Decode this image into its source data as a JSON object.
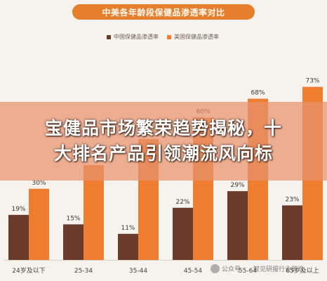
{
  "chart_data": {
    "type": "bar",
    "title": "中美各年龄段保健品渗透率对比",
    "categories": [
      "24岁及以下",
      "25-34",
      "35-44",
      "45-54",
      "55-64",
      "65岁及以上"
    ],
    "series": [
      {
        "name": "中国保健品渗透率",
        "color": "#6a3a2a",
        "values": [
          19,
          15,
          11,
          22,
          29,
          23
        ]
      },
      {
        "name": "美国保健品渗透率",
        "color": "#ee7d30",
        "values": [
          30,
          40,
          51,
          60,
          68,
          73
        ]
      }
    ],
    "data_labels": [
      [
        "19%",
        "15%",
        "11%",
        "22%",
        "29%",
        "23%"
      ],
      [
        "30%",
        "",
        "51%",
        "60%",
        "68%",
        "73%"
      ]
    ],
    "ylim": [
      0,
      80
    ],
    "legend_position": "top",
    "grid": false
  },
  "overlay": {
    "line1": "宝健品市场繁荣趋势揭秘，十",
    "line2": "大排名产品引领潮流风向标"
  },
  "watermark": {
    "account": "公众号",
    "name": "智见研报行业前沿"
  },
  "colors": {
    "background": "#f6f2ee",
    "title_pill": "#e57f2c",
    "china": "#6a3a2a",
    "usa": "#ee7d30",
    "overlay": "#e8926e"
  }
}
